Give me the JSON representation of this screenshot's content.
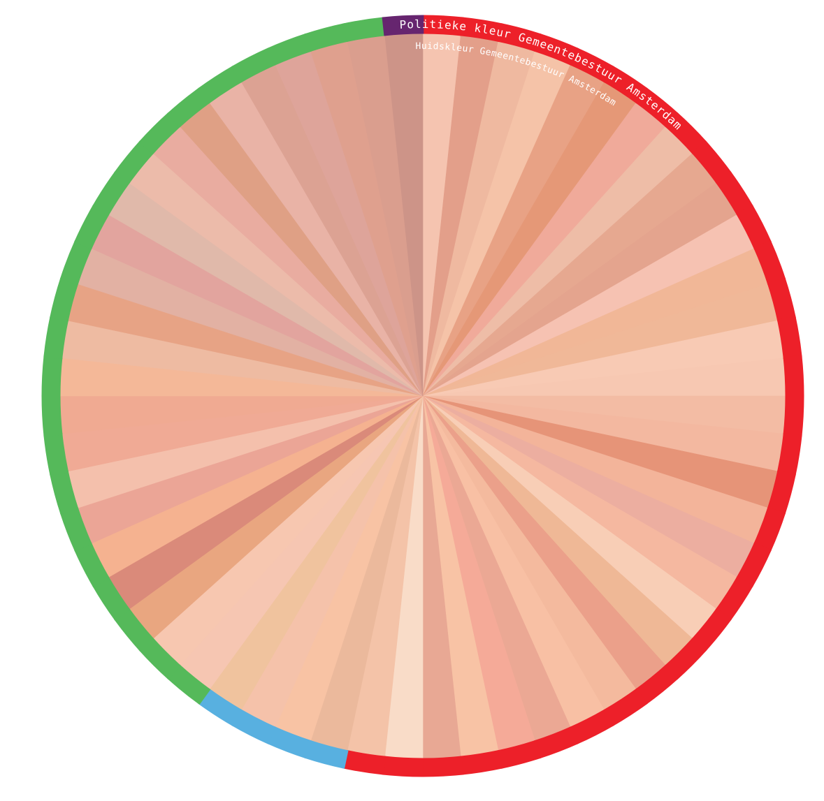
{
  "labels": {
    "outer": "Politieke kleur Gemeentebestuur Amsterdam",
    "inner": "Huidskleur Gemeentebestuur Amsterdam"
  },
  "members": [
    {
      "skin": "#f5c4b0",
      "party": "#ed2029"
    },
    {
      "skin": "#e39f8a",
      "party": "#ed2029"
    },
    {
      "skin": "#efb9a0",
      "party": "#ed2029"
    },
    {
      "skin": "#f5c3a8",
      "party": "#ed2029"
    },
    {
      "skin": "#e8a285",
      "party": "#ed2029"
    },
    {
      "skin": "#e59877",
      "party": "#ed2029"
    },
    {
      "skin": "#f0aa9a",
      "party": "#ed2029"
    },
    {
      "skin": "#eebda7",
      "party": "#ed2029"
    },
    {
      "skin": "#e6a890",
      "party": "#ed2029"
    },
    {
      "skin": "#e4a48e",
      "party": "#ed2029"
    },
    {
      "skin": "#f6c2b2",
      "party": "#ed2029"
    },
    {
      "skin": "#f1b797",
      "party": "#ed2029"
    },
    {
      "skin": "#f0b898",
      "party": "#ed2029"
    },
    {
      "skin": "#f8cab4",
      "party": "#ed2029"
    },
    {
      "skin": "#f7c8b2",
      "party": "#ed2029"
    },
    {
      "skin": "#f3bca4",
      "party": "#ed2029"
    },
    {
      "skin": "#f3b8a0",
      "party": "#ed2029"
    },
    {
      "skin": "#e69478",
      "party": "#ed2029"
    },
    {
      "skin": "#f3b49a",
      "party": "#ed2029"
    },
    {
      "skin": "#ecaea0",
      "party": "#ed2029"
    },
    {
      "skin": "#f5b8a0",
      "party": "#ed2029"
    },
    {
      "skin": "#f8ceb6",
      "party": "#ed2029"
    },
    {
      "skin": "#efb896",
      "party": "#ed2029"
    },
    {
      "skin": "#eba08a",
      "party": "#ed2029"
    },
    {
      "skin": "#f4ba9e",
      "party": "#ed2029"
    },
    {
      "skin": "#f8c0a4",
      "party": "#ed2029"
    },
    {
      "skin": "#eba894",
      "party": "#ed2029"
    },
    {
      "skin": "#f5aa98",
      "party": "#ed2029"
    },
    {
      "skin": "#f8c3a5",
      "party": "#ed2029"
    },
    {
      "skin": "#e8a894",
      "party": "#ed2029"
    },
    {
      "skin": "#f9dcc8",
      "party": "#ed2029"
    },
    {
      "skin": "#f4c3a8",
      "party": "#ed2029"
    },
    {
      "skin": "#ebb99c",
      "party": "#58b0e0"
    },
    {
      "skin": "#f8c3a4",
      "party": "#58b0e0"
    },
    {
      "skin": "#f5c2aa",
      "party": "#58b0e0"
    },
    {
      "skin": "#f0c39e",
      "party": "#58b0e0"
    },
    {
      "skin": "#f6c6b2",
      "party": "#55b95a"
    },
    {
      "skin": "#f7c7b0",
      "party": "#55b95a"
    },
    {
      "skin": "#e9a680",
      "party": "#55b95a"
    },
    {
      "skin": "#da8a7a",
      "party": "#55b95a"
    },
    {
      "skin": "#f5b290",
      "party": "#55b95a"
    },
    {
      "skin": "#eba596",
      "party": "#55b95a"
    },
    {
      "skin": "#f4c0ac",
      "party": "#55b95a"
    },
    {
      "skin": "#f0aa95",
      "party": "#55b95a"
    },
    {
      "skin": "#f0aa92",
      "party": "#55b95a"
    },
    {
      "skin": "#f4b898",
      "party": "#55b95a"
    },
    {
      "skin": "#eebba2",
      "party": "#55b95a"
    },
    {
      "skin": "#e7a385",
      "party": "#55b95a"
    },
    {
      "skin": "#e2b1a3",
      "party": "#55b95a"
    },
    {
      "skin": "#e2a49e",
      "party": "#55b95a"
    },
    {
      "skin": "#e0b9aa",
      "party": "#55b95a"
    },
    {
      "skin": "#ecbbaa",
      "party": "#55b95a"
    },
    {
      "skin": "#e9aca0",
      "party": "#55b95a"
    },
    {
      "skin": "#dfa085",
      "party": "#55b95a"
    },
    {
      "skin": "#e9b3a6",
      "party": "#55b95a"
    },
    {
      "skin": "#dca293",
      "party": "#55b95a"
    },
    {
      "skin": "#dea49a",
      "party": "#55b95a"
    },
    {
      "skin": "#dfa08e",
      "party": "#55b95a"
    },
    {
      "skin": "#da9e8e",
      "party": "#55b95a"
    },
    {
      "skin": "#cd9488",
      "party": "#66256f"
    }
  ]
}
